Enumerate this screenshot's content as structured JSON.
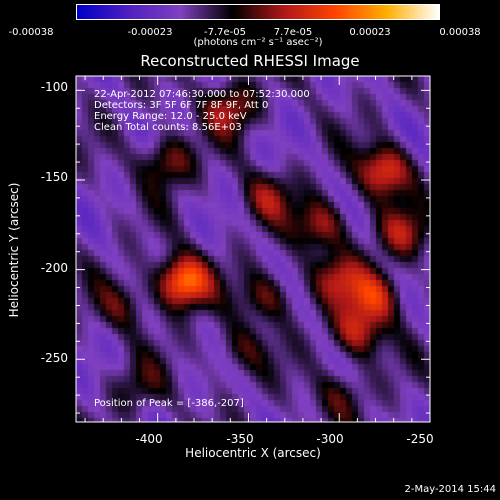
{
  "chart_data": {
    "type": "heatmap",
    "title": "Reconstructed RHESSI Image",
    "xlabel": "Heliocentric X (arcsec)",
    "ylabel": "Heliocentric Y (arcsec)",
    "xlim": [
      -445,
      -250
    ],
    "ylim": [
      -285,
      -92
    ],
    "x_ticks": [
      "-400",
      "-350",
      "-300",
      "-250"
    ],
    "x_tick_values": [
      -400,
      -350,
      -300,
      -250
    ],
    "y_ticks": [
      "-100",
      "-150",
      "-200",
      "-250"
    ],
    "y_tick_values": [
      -100,
      -150,
      -200,
      -250
    ],
    "colorbar": {
      "ticks": [
        "-0.00038",
        "-0.00023",
        "-7.7e-05",
        "7.7e-05",
        "0.00023",
        "0.00038"
      ],
      "tick_values": [
        -0.00038,
        -0.00023,
        -7.7e-05,
        7.7e-05,
        0.00023,
        0.00038
      ],
      "range": [
        -0.00038,
        0.00038
      ],
      "unit": "(photons cm⁻² s⁻¹ asec⁻²)"
    },
    "annotations": [
      "22-Apr-2012 07:46:30.000 to 07:52:30.000",
      "Detectors: 3F 5F 6F 7F 8F 9F, Att 0",
      "Energy Range: 12.0 - 25.0 keV",
      "Clean     Total counts: 8.56E+03"
    ],
    "peak_label": "Position of Peak = [-386,-207]",
    "peak": [
      -386,
      -207
    ],
    "sources": [
      {
        "x": -386,
        "y": -207,
        "intensity": 0.00038
      },
      {
        "x": -395,
        "y": -140,
        "intensity": 0.00018
      },
      {
        "x": -360,
        "y": -110,
        "intensity": 0.0002
      },
      {
        "x": -340,
        "y": -160,
        "intensity": 0.00016
      },
      {
        "x": -310,
        "y": -175,
        "intensity": 0.0002
      },
      {
        "x": -300,
        "y": -205,
        "intensity": 0.00018
      },
      {
        "x": -275,
        "y": -145,
        "intensity": 0.00028
      },
      {
        "x": -265,
        "y": -180,
        "intensity": 0.00018
      },
      {
        "x": -280,
        "y": -215,
        "intensity": 0.00024
      },
      {
        "x": -290,
        "y": -235,
        "intensity": 0.00022
      },
      {
        "x": -340,
        "y": -215,
        "intensity": 0.00016
      },
      {
        "x": -355,
        "y": -245,
        "intensity": 0.00012
      },
      {
        "x": -420,
        "y": -220,
        "intensity": 0.00012
      },
      {
        "x": -410,
        "y": -265,
        "intensity": 0.0001
      },
      {
        "x": -300,
        "y": -270,
        "intensity": 0.00012
      }
    ],
    "colorscale": [
      "#0000c8",
      "#5020c0",
      "#8040c0",
      "#000000",
      "#b01818",
      "#ff4400",
      "#ffb000",
      "#ffffff"
    ]
  },
  "datestamp": "2-May-2014 15:44"
}
